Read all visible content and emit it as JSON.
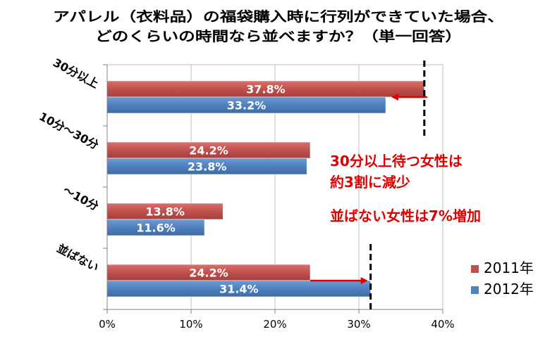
{
  "chart_data": {
    "type": "bar",
    "orientation": "horizontal",
    "title_lines": [
      "アパレル（衣料品）の福袋購入時に行列ができていた場合、",
      "どのくらいの時間なら並べますか？（単一回答）"
    ],
    "categories": [
      "30分以上",
      "10分～30分",
      "～10分",
      "並ばない"
    ],
    "series": [
      {
        "name": "2011年",
        "color": "#c0504d",
        "values": [
          37.8,
          24.2,
          13.8,
          24.2
        ],
        "labels": [
          "37.8%",
          "24.2%",
          "13.8%",
          "24.2%"
        ]
      },
      {
        "name": "2012年",
        "color": "#4f81bd",
        "values": [
          33.2,
          23.8,
          11.6,
          31.4
        ],
        "labels": [
          "33.2%",
          "23.8%",
          "11.6%",
          "31.4%"
        ]
      }
    ],
    "xlim": [
      0,
      40
    ],
    "x_ticks": [
      0,
      10,
      20,
      30,
      40
    ],
    "x_tick_labels": [
      "0%",
      "10%",
      "20%",
      "30%",
      "40%"
    ],
    "grid": true,
    "legend_position": "bottom-right",
    "annotations": [
      {
        "text_lines": [
          "30分以上待つ女性は",
          "約3割に減少"
        ],
        "color": "#e00000"
      },
      {
        "text_lines": [
          "並ばない女性は7%増加"
        ],
        "color": "#e00000"
      }
    ],
    "reference_lines": [
      {
        "category_index": 0,
        "x": 37.8
      },
      {
        "category_index": 3,
        "x": 31.4
      }
    ],
    "arrows": [
      {
        "category_index": 0,
        "from": 37.8,
        "to": 33.2
      },
      {
        "category_index": 3,
        "from": 24.2,
        "to": 31.4
      }
    ]
  }
}
